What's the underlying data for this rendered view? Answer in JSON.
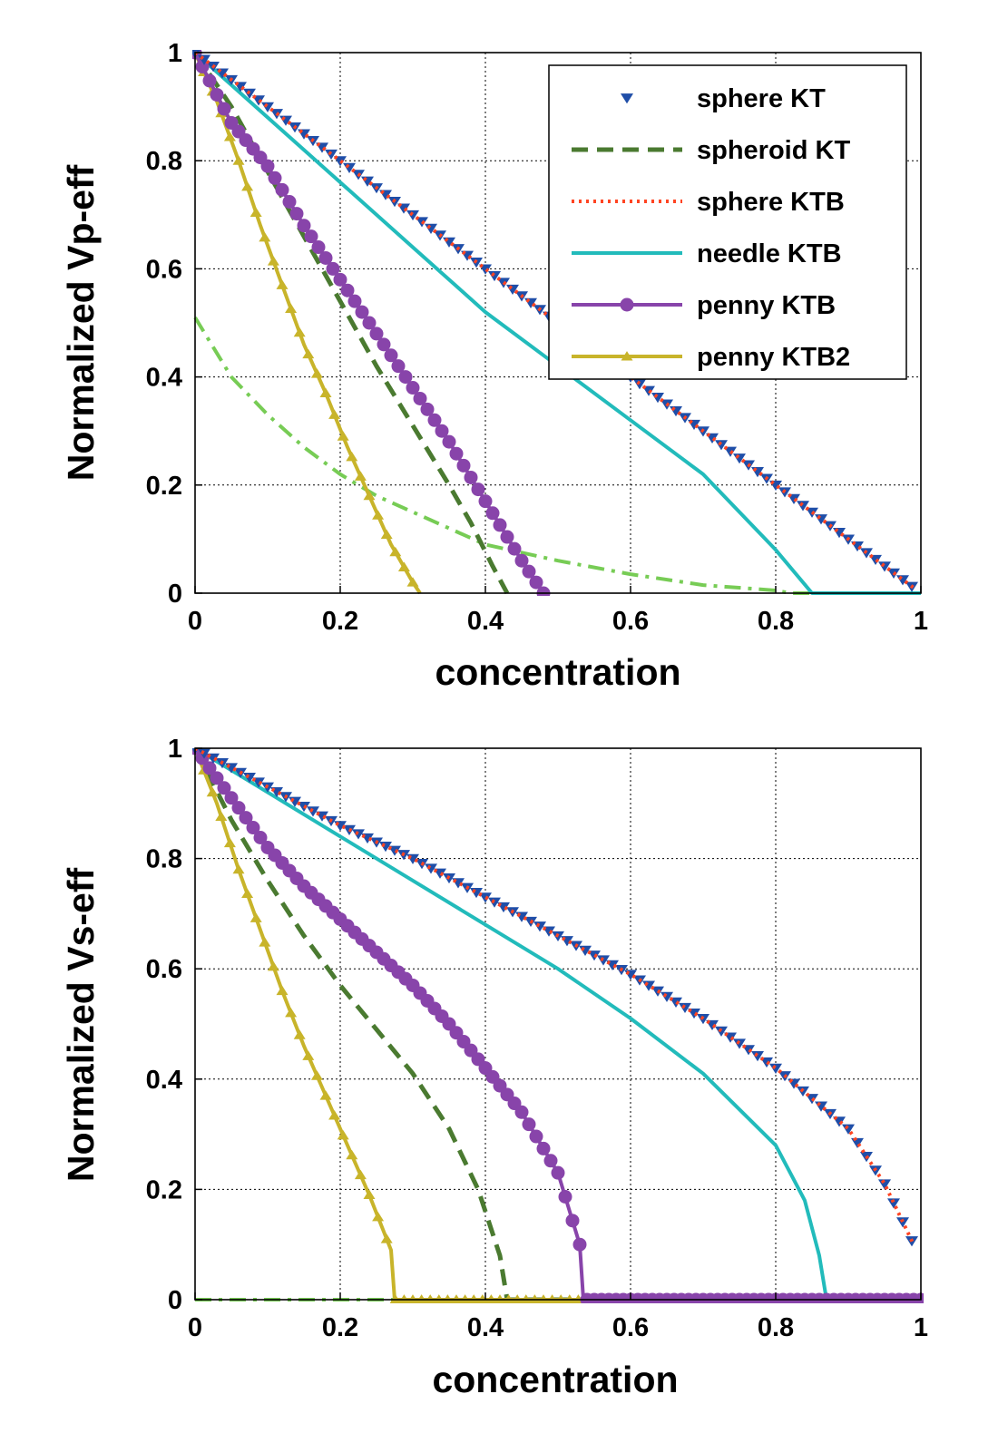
{
  "chart_data": [
    {
      "type": "line",
      "id": "vp",
      "title": "",
      "xlabel": "concentration",
      "ylabel": "Normalized Vp-eff",
      "xlim": [
        0,
        1
      ],
      "ylim": [
        0,
        1
      ],
      "xticks": [
        "0",
        "0.2",
        "0.4",
        "0.6",
        "0.8",
        "1"
      ],
      "yticks": [
        "0",
        "0.2",
        "0.4",
        "0.6",
        "0.8",
        "1"
      ],
      "grid": true,
      "legend_position": "top-right",
      "series": [
        {
          "name": "sphere KT",
          "color": "#1f4ea8",
          "style": "triangle-markers",
          "in_legend": true,
          "x": [
            0,
            0.1,
            0.2,
            0.3,
            0.4,
            0.5,
            0.6,
            0.7,
            0.8,
            0.9,
            0.99
          ],
          "y": [
            1,
            0.9,
            0.8,
            0.7,
            0.6,
            0.5,
            0.4,
            0.3,
            0.2,
            0.1,
            0.01
          ]
        },
        {
          "name": "spheroid KT",
          "color": "#4a7a30",
          "style": "dashed",
          "in_legend": true,
          "x": [
            0,
            0.05,
            0.1,
            0.15,
            0.2,
            0.25,
            0.3,
            0.35,
            0.38,
            0.41,
            0.43
          ],
          "y": [
            1,
            0.9,
            0.78,
            0.66,
            0.54,
            0.42,
            0.31,
            0.2,
            0.13,
            0.05,
            0
          ]
        },
        {
          "name": "sphere KTB",
          "color": "#ff4422",
          "style": "dotted",
          "in_legend": true,
          "x": [
            0,
            0.1,
            0.2,
            0.3,
            0.4,
            0.5,
            0.6,
            0.7,
            0.8,
            0.9,
            0.99
          ],
          "y": [
            1,
            0.9,
            0.8,
            0.7,
            0.6,
            0.5,
            0.4,
            0.3,
            0.2,
            0.1,
            0.01
          ]
        },
        {
          "name": "needle KTB",
          "color": "#22bbbb",
          "style": "solid",
          "in_legend": true,
          "x": [
            0,
            0.1,
            0.2,
            0.3,
            0.4,
            0.5,
            0.6,
            0.7,
            0.8,
            0.85,
            1.0
          ],
          "y": [
            1,
            0.88,
            0.76,
            0.64,
            0.52,
            0.42,
            0.32,
            0.22,
            0.08,
            0,
            0
          ]
        },
        {
          "name": "penny KTB",
          "color": "#8844aa",
          "style": "circle-markers",
          "in_legend": true,
          "x": [
            0,
            0.05,
            0.1,
            0.15,
            0.2,
            0.25,
            0.3,
            0.35,
            0.4,
            0.45,
            0.48
          ],
          "y": [
            1,
            0.87,
            0.79,
            0.68,
            0.58,
            0.48,
            0.38,
            0.28,
            0.17,
            0.06,
            0
          ]
        },
        {
          "name": "penny KTB2",
          "color": "#c8b42a",
          "style": "triangle-up-markers",
          "in_legend": true,
          "x": [
            0,
            0.03,
            0.06,
            0.09,
            0.12,
            0.15,
            0.18,
            0.21,
            0.24,
            0.27,
            0.3,
            0.31
          ],
          "y": [
            1,
            0.91,
            0.8,
            0.68,
            0.57,
            0.46,
            0.37,
            0.27,
            0.18,
            0.09,
            0.02,
            0
          ]
        },
        {
          "name": "",
          "color": "#77cc55",
          "style": "dash-dot",
          "in_legend": false,
          "x": [
            0,
            0.05,
            0.1,
            0.15,
            0.2,
            0.25,
            0.3,
            0.35,
            0.4,
            0.5,
            0.6,
            0.7,
            0.8,
            0.82,
            1.0
          ],
          "y": [
            0.51,
            0.4,
            0.33,
            0.27,
            0.22,
            0.18,
            0.15,
            0.12,
            0.09,
            0.06,
            0.035,
            0.015,
            0.005,
            0,
            0
          ]
        }
      ]
    },
    {
      "type": "line",
      "id": "vs",
      "title": "",
      "xlabel": "concentration",
      "ylabel": "Normalized Vs-eff",
      "xlim": [
        0,
        1
      ],
      "ylim": [
        0,
        1
      ],
      "xticks": [
        "0",
        "0.2",
        "0.4",
        "0.6",
        "0.8",
        "1"
      ],
      "yticks": [
        "0",
        "0.2",
        "0.4",
        "0.6",
        "0.8",
        "1"
      ],
      "grid": true,
      "legend_position": "none",
      "series": [
        {
          "name": "sphere KT",
          "color": "#1f4ea8",
          "style": "triangle-markers",
          "x": [
            0,
            0.1,
            0.2,
            0.3,
            0.4,
            0.5,
            0.6,
            0.7,
            0.8,
            0.9,
            0.95,
            0.99
          ],
          "y": [
            1,
            0.93,
            0.86,
            0.8,
            0.73,
            0.66,
            0.59,
            0.51,
            0.42,
            0.31,
            0.21,
            0.1
          ]
        },
        {
          "name": "spheroid KT",
          "color": "#4a7a30",
          "style": "dashed",
          "x": [
            0,
            0.05,
            0.1,
            0.15,
            0.2,
            0.25,
            0.3,
            0.35,
            0.39,
            0.42,
            0.43,
            1.0
          ],
          "y": [
            1,
            0.87,
            0.76,
            0.66,
            0.57,
            0.49,
            0.41,
            0.31,
            0.2,
            0.08,
            0,
            0
          ]
        },
        {
          "name": "sphere KTB",
          "color": "#ff4422",
          "style": "dotted",
          "x": [
            0,
            0.1,
            0.2,
            0.3,
            0.4,
            0.5,
            0.6,
            0.7,
            0.8,
            0.9,
            0.95,
            0.99
          ],
          "y": [
            1,
            0.93,
            0.86,
            0.8,
            0.73,
            0.66,
            0.59,
            0.51,
            0.42,
            0.31,
            0.21,
            0.1
          ]
        },
        {
          "name": "needle KTB",
          "color": "#22bbbb",
          "style": "solid",
          "x": [
            0,
            0.1,
            0.2,
            0.3,
            0.4,
            0.5,
            0.6,
            0.7,
            0.8,
            0.84,
            0.86,
            0.87,
            1.0
          ],
          "y": [
            1,
            0.92,
            0.84,
            0.76,
            0.68,
            0.6,
            0.51,
            0.41,
            0.28,
            0.18,
            0.08,
            0,
            0
          ]
        },
        {
          "name": "penny KTB",
          "color": "#8844aa",
          "style": "circle-markers",
          "x": [
            0,
            0.05,
            0.1,
            0.15,
            0.2,
            0.25,
            0.3,
            0.35,
            0.4,
            0.45,
            0.5,
            0.53,
            0.535,
            1.0
          ],
          "y": [
            1,
            0.91,
            0.82,
            0.75,
            0.69,
            0.63,
            0.57,
            0.5,
            0.42,
            0.34,
            0.23,
            0.1,
            0,
            0
          ]
        },
        {
          "name": "penny KTB2",
          "color": "#c8b42a",
          "style": "triangle-up-markers",
          "x": [
            0,
            0.03,
            0.06,
            0.09,
            0.12,
            0.15,
            0.18,
            0.21,
            0.24,
            0.27,
            0.275,
            1.0
          ],
          "y": [
            1,
            0.9,
            0.78,
            0.67,
            0.56,
            0.46,
            0.37,
            0.28,
            0.19,
            0.09,
            0,
            0
          ]
        },
        {
          "name": "",
          "color": "#77cc55",
          "style": "dash-dot",
          "x": [
            0,
            1.0
          ],
          "y": [
            0,
            0
          ]
        }
      ]
    }
  ]
}
